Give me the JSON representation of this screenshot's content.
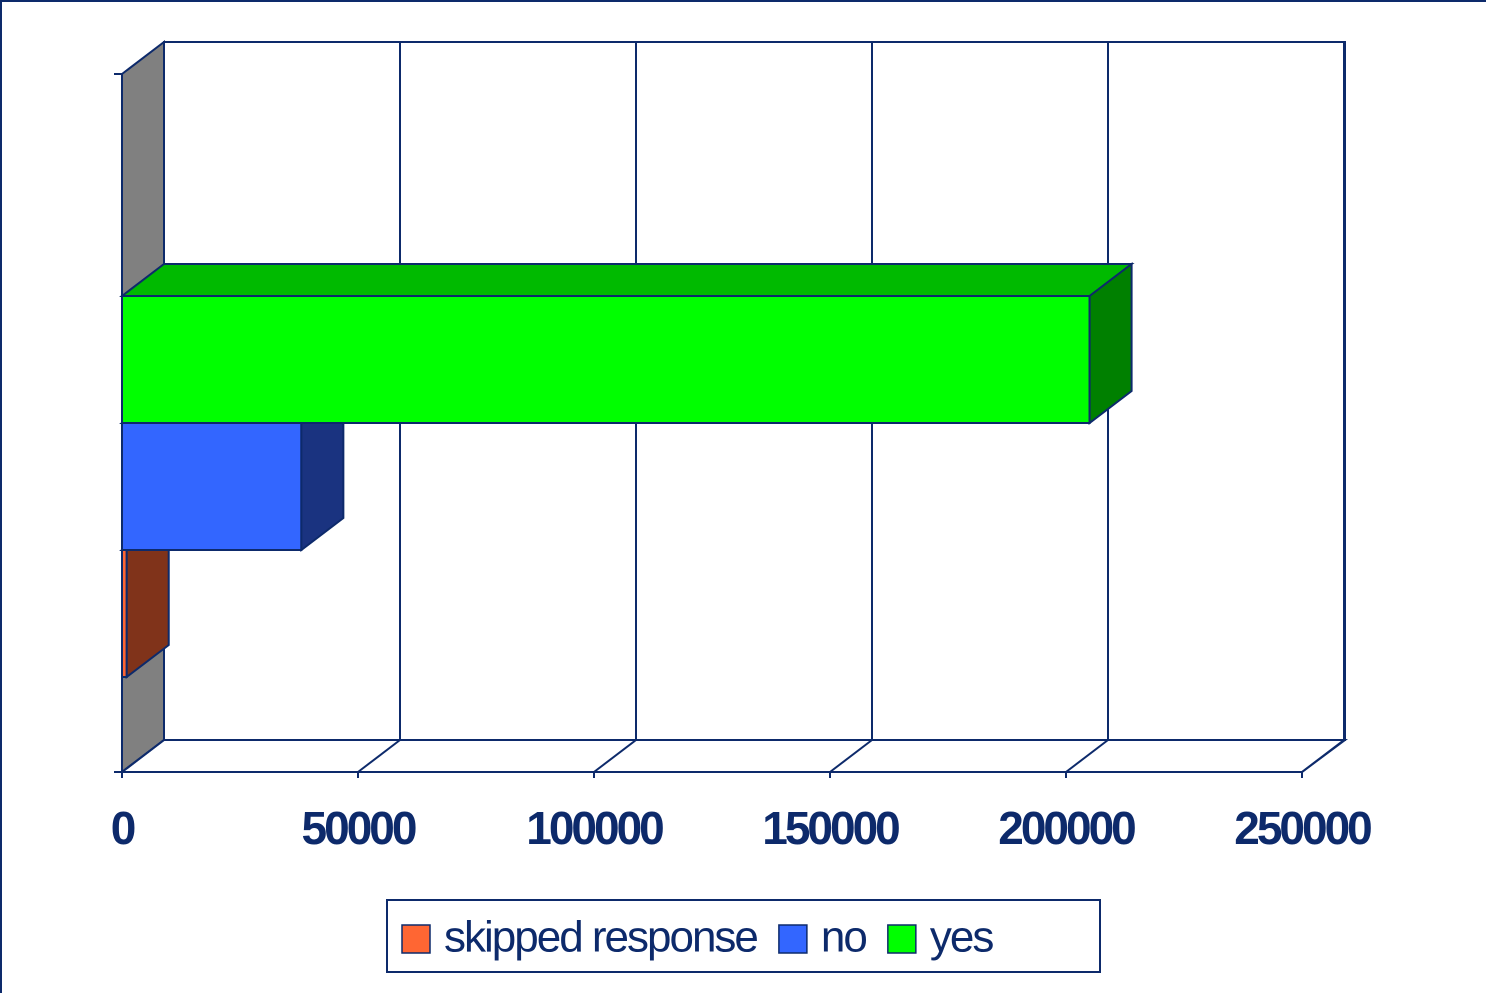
{
  "chart_data": {
    "type": "bar3d_horizontal",
    "categories": [
      null
    ],
    "series": [
      {
        "name": "skipped response",
        "color": "#ff6633",
        "values": [
          1000
        ]
      },
      {
        "name": "no",
        "color": "#3366ff",
        "values": [
          38000
        ]
      },
      {
        "name": "yes",
        "color": "#00ff00",
        "values": [
          205000
        ]
      }
    ],
    "xlim": [
      0,
      250000
    ],
    "xticks": [
      0,
      50000,
      100000,
      150000,
      200000,
      250000
    ],
    "grid": true,
    "legend": "bottom"
  }
}
